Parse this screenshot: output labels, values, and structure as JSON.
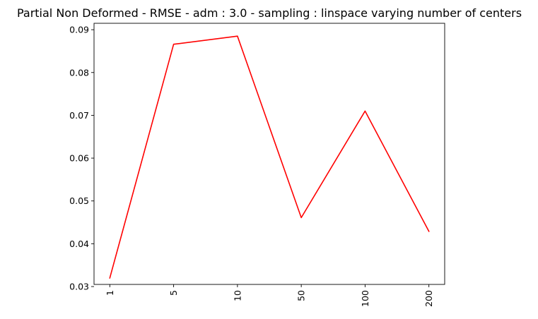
{
  "chart_data": {
    "type": "line",
    "title": "Partial Non Deformed - RMSE - adm : 3.0 - sampling : linspace varying number of centers",
    "xlabel": "",
    "ylabel": "",
    "categories": [
      "1",
      "5",
      "10",
      "50",
      "100",
      "200"
    ],
    "series": [
      {
        "values": [
          0.032,
          0.0866,
          0.0885,
          0.0461,
          0.071,
          0.0429
        ],
        "color": "#ff0000"
      }
    ],
    "ylim": [
      0.0305,
      0.0915
    ],
    "yticks": [
      0.03,
      0.04,
      0.05,
      0.06,
      0.07,
      0.08,
      0.09
    ],
    "ytick_labels": [
      "0.03",
      "0.04",
      "0.05",
      "0.06",
      "0.07",
      "0.08",
      "0.09"
    ],
    "xtick_rotation": "vertical",
    "grid": false,
    "legend": "none"
  }
}
